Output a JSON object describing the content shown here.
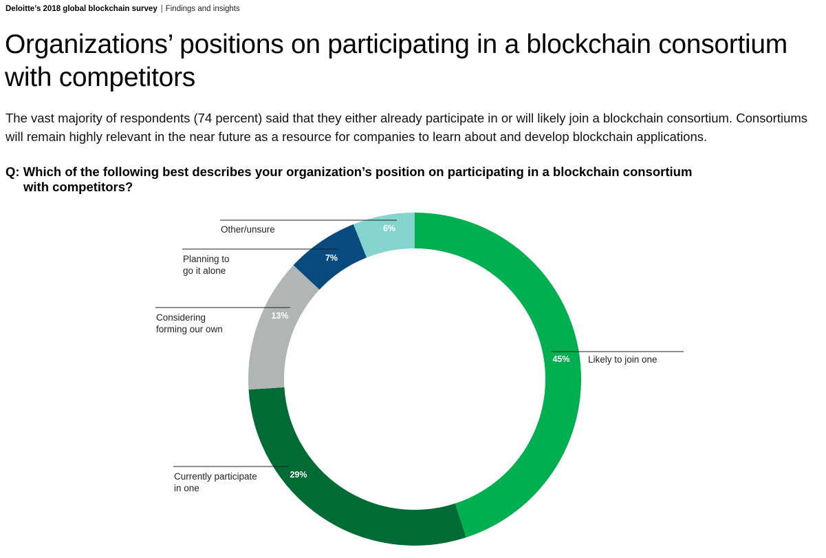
{
  "header": {
    "report": "Deloitte’s 2018 global blockchain survey",
    "separator": "|",
    "section": "Findings and insights"
  },
  "title": "Organizations’ positions on participating in a blockchain consortium with competitors",
  "intro": "The vast majority of respondents (74 percent) said that they either already participate in or will likely join a blockchain consortium. Consortiums will remain highly relevant in the near future as a resource for companies to learn about and develop blockchain applications.",
  "question": {
    "prefix": "Q:",
    "line1": "Which of the following best describes your organization’s position on participating in a blockchain consortium",
    "line2": "with competitors?"
  },
  "chart_data": {
    "type": "pie",
    "style": "donut",
    "categories": [
      "Likely to join one",
      "Currently participate in one",
      "Considering forming our own",
      "Planning to go it alone",
      "Other/unsure"
    ],
    "category_lines": [
      [
        "Likely to join one"
      ],
      [
        "Currently participate",
        "in one"
      ],
      [
        "Considering",
        "forming our own"
      ],
      [
        "Planning to",
        "go it alone"
      ],
      [
        "Other/unsure"
      ]
    ],
    "values": [
      45,
      29,
      13,
      7,
      6
    ],
    "labels": [
      "45%",
      "29%",
      "13%",
      "7%",
      "6%"
    ],
    "colors": [
      "#00b050",
      "#006b35",
      "#b1b5b4",
      "#064a7e",
      "#85d4ce"
    ],
    "start": "top",
    "direction": "clockwise",
    "legend": "none"
  }
}
